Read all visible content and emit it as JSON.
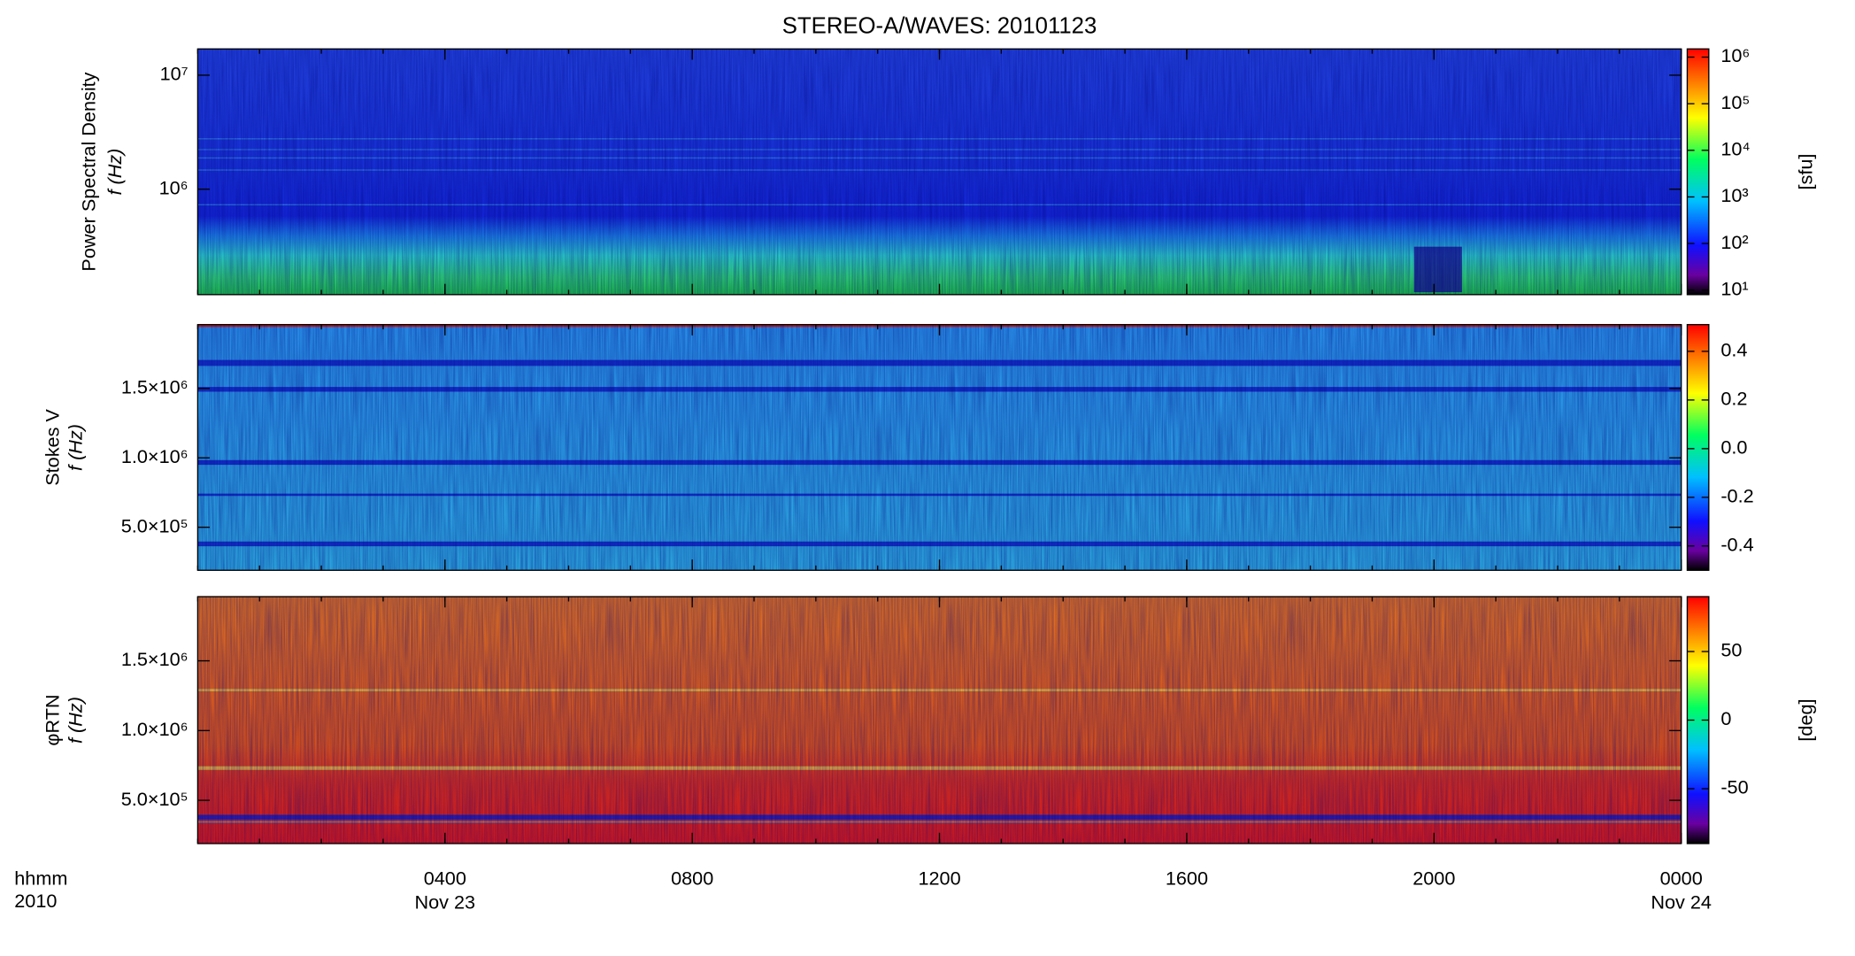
{
  "chart_data": {
    "type": "spectrogram",
    "title": "STEREO-A/WAVES: 20101123",
    "xlim": [
      0,
      24
    ],
    "xticks": [
      {
        "value": 4,
        "label": "0400"
      },
      {
        "value": 8,
        "label": "0800"
      },
      {
        "value": 12,
        "label": "1200"
      },
      {
        "value": 16,
        "label": "1600"
      },
      {
        "value": 20,
        "label": "2000"
      },
      {
        "value": 24,
        "label": "0000"
      }
    ],
    "x_date_labels": [
      {
        "value": 4,
        "label": "Nov 23"
      },
      {
        "value": 24,
        "label": "Nov 24"
      }
    ],
    "x_axis_labels": [
      "hhmm",
      "2010"
    ],
    "panels": [
      {
        "ylabel": [
          "Power Spectral Density",
          "f (Hz)"
        ],
        "ylog": true,
        "ylim": [
          119000,
          17000000
        ],
        "yticks": [
          {
            "value": 1000000,
            "label": "10⁶"
          },
          {
            "value": 10000000,
            "label": "10⁷"
          }
        ],
        "clabel": "[sfu]",
        "clog": true,
        "clim": [
          8,
          1500000
        ],
        "cticks": [
          {
            "value": 10,
            "label": "10¹"
          },
          {
            "value": 100,
            "label": "10²"
          },
          {
            "value": 1000,
            "label": "10³"
          },
          {
            "value": 10000,
            "label": "10⁴"
          },
          {
            "value": 100000,
            "label": "10⁵"
          },
          {
            "value": 1000000,
            "label": "10⁶"
          }
        ]
      },
      {
        "ylabel": [
          "Stokes V",
          "f (Hz)"
        ],
        "ylog": false,
        "ylim": [
          190000,
          1960000
        ],
        "yticks": [
          {
            "value": 500000,
            "label": "5.0×10⁵"
          },
          {
            "value": 1000000,
            "label": "1.0×10⁶"
          },
          {
            "value": 1500000,
            "label": "1.5×10⁶"
          }
        ],
        "clog": false,
        "clim": [
          -0.5,
          0.51
        ],
        "cticks": [
          -0.4,
          -0.2,
          {
            "value": 0,
            "label": "0.0"
          },
          0.2,
          0.4
        ]
      },
      {
        "ylabel": [
          "φRTN",
          "f (Hz)"
        ],
        "ylog": false,
        "ylim": [
          190000,
          1960000
        ],
        "yticks": [
          {
            "value": 500000,
            "label": "5.0×10⁵"
          },
          {
            "value": 1000000,
            "label": "1.0×10⁶"
          },
          {
            "value": 1500000,
            "label": "1.5×10⁶"
          }
        ],
        "clabel": "[deg]",
        "clog": false,
        "clim": [
          -90,
          90
        ],
        "cticks": [
          -50,
          0,
          50
        ]
      }
    ]
  }
}
